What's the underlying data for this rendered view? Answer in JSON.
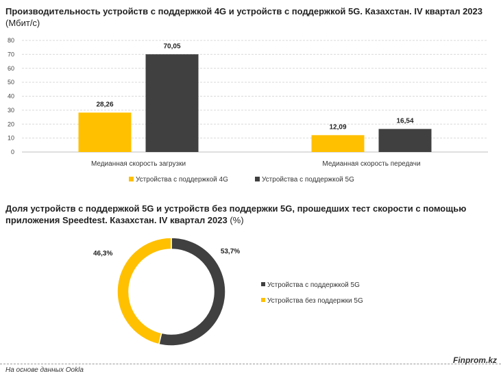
{
  "bar_chart_title_bold": "Производительность устройств с поддержкой 4G и устройств с поддержкой 5G. Казахстан. IV квартал 2023",
  "bar_chart_title_unit": " (Мбит/с)",
  "donut_chart_title_bold": "Доля устройств с поддержкой 5G и устройств без поддержки 5G, прошедших тест скорости с помощью приложения Speedtest. Казахстан. IV квартал 2023",
  "donut_chart_title_unit": " (%)",
  "footer_source": "На основе данных Ookla",
  "brand": "Finprom.kz",
  "colors": {
    "yellow": "#FFC000",
    "dark": "#404040",
    "grid": "#D9D9D9"
  },
  "chart_data": [
    {
      "type": "bar",
      "categories": [
        "Медианная скорость загрузки",
        "Медианная скорость передачи"
      ],
      "series": [
        {
          "name": "Устройства с поддержкой 4G",
          "values": [
            28.26,
            12.09
          ],
          "labels": [
            "28,26",
            "12,09"
          ],
          "color": "#FFC000"
        },
        {
          "name": "Устройства с поддержкой 5G",
          "values": [
            70.05,
            16.54
          ],
          "labels": [
            "70,05",
            "16,54"
          ],
          "color": "#404040"
        }
      ],
      "ylim": [
        0,
        80
      ],
      "yticks": [
        0,
        10,
        20,
        30,
        40,
        50,
        60,
        70,
        80
      ],
      "grid": true,
      "legend": "bottom"
    },
    {
      "type": "pie",
      "donut": true,
      "slices": [
        {
          "name": "Устройства с поддержкой 5G",
          "value": 53.7,
          "label": "53,7%",
          "color": "#404040"
        },
        {
          "name": "Устройства без поддержки 5G",
          "value": 46.3,
          "label": "46,3%",
          "color": "#FFC000"
        }
      ],
      "legend": "right"
    }
  ]
}
